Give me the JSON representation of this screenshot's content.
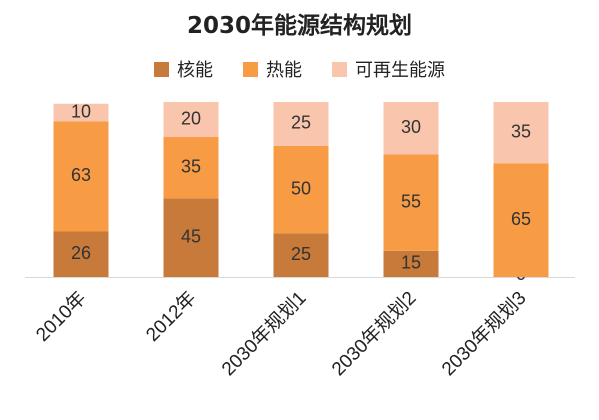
{
  "title": "2030年能源结构规划",
  "legend": [
    {
      "label": "核能",
      "color": "#c87a3a"
    },
    {
      "label": "热能",
      "color": "#f79b45"
    },
    {
      "label": "可再生能源",
      "color": "#f9c6ad"
    }
  ],
  "chart_data": {
    "type": "bar",
    "stacked": true,
    "title": "2030年能源结构规划",
    "categories": [
      "2010年",
      "2012年",
      "2030年规划1",
      "2030年规划2",
      "2030年规划3"
    ],
    "series": [
      {
        "name": "核能",
        "values": [
          26,
          45,
          25,
          15,
          0
        ],
        "color": "#c87a3a"
      },
      {
        "name": "热能",
        "values": [
          63,
          35,
          50,
          55,
          65
        ],
        "color": "#f79b45"
      },
      {
        "name": "可再生能源",
        "values": [
          10,
          20,
          25,
          30,
          35
        ],
        "color": "#f9c6ad"
      }
    ],
    "xlabel": "",
    "ylabel": "",
    "ylim": [
      0,
      100
    ],
    "grid": false,
    "legend_position": "top"
  }
}
